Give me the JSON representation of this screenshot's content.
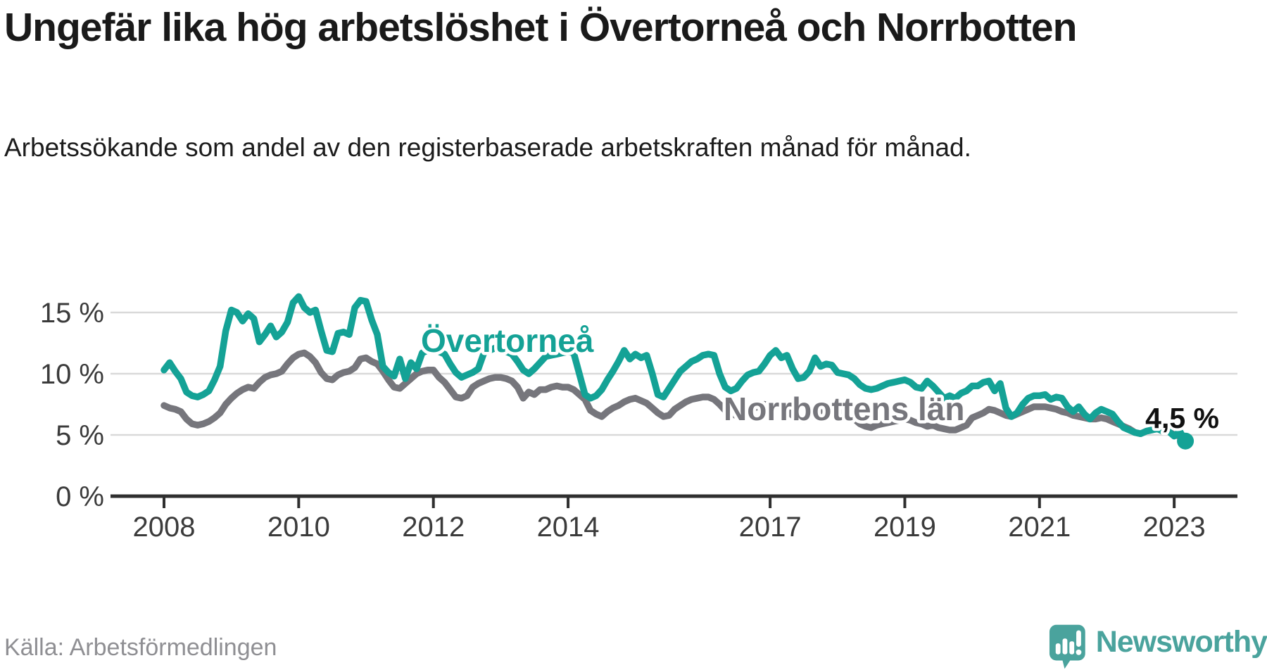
{
  "header": {
    "title": "Ungefär lika hög arbetslöshet i Övertorneå och Norrbotten",
    "subtitle": "Arbetssökande som andel av den registerbaserade arbetskraften månad för månad."
  },
  "chart_data": {
    "type": "line",
    "unit": "%",
    "x_start": "2008-01",
    "x_end": "2023-03",
    "frequency": "monthly",
    "grid": "horizontal",
    "ylim": [
      0,
      17
    ],
    "y_ticks": [
      {
        "value": 0,
        "label": "0 %"
      },
      {
        "value": 5,
        "label": "5 %"
      },
      {
        "value": 10,
        "label": "10 %"
      },
      {
        "value": 15,
        "label": "15 %"
      }
    ],
    "x_tick_years": [
      2008,
      2010,
      2012,
      2014,
      2017,
      2019,
      2021,
      2023
    ],
    "series": [
      {
        "name": "Övertorneå",
        "color": "#14a296",
        "values": [
          10.3,
          10.9,
          10.2,
          9.6,
          8.5,
          8.2,
          8.1,
          8.3,
          8.6,
          9.5,
          10.6,
          13.5,
          15.2,
          15.0,
          14.3,
          14.9,
          14.5,
          12.6,
          13.2,
          13.9,
          13.0,
          13.4,
          14.2,
          15.8,
          16.3,
          15.4,
          15.0,
          15.2,
          13.5,
          11.9,
          11.8,
          13.3,
          13.4,
          13.2,
          15.4,
          16.0,
          15.9,
          14.4,
          13.2,
          10.6,
          10.1,
          9.8,
          11.2,
          9.6,
          10.9,
          10.4,
          11.7,
          11.9,
          12.0,
          11.8,
          11.6,
          10.8,
          10.1,
          9.7,
          9.9,
          10.1,
          10.4,
          11.7,
          11.9,
          12.1,
          12.0,
          11.8,
          11.6,
          11.0,
          10.3,
          10.0,
          10.4,
          10.9,
          11.4,
          11.5,
          11.6,
          11.7,
          11.8,
          11.7,
          10.0,
          8.3,
          8.0,
          8.2,
          8.7,
          9.5,
          10.2,
          11.0,
          11.9,
          11.2,
          11.6,
          11.3,
          11.5,
          10.0,
          8.3,
          8.1,
          8.8,
          9.5,
          10.2,
          10.6,
          11.0,
          11.2,
          11.5,
          11.6,
          11.5,
          10.0,
          8.9,
          8.6,
          8.8,
          9.4,
          9.9,
          10.1,
          10.2,
          10.8,
          11.5,
          11.9,
          11.3,
          11.5,
          10.4,
          9.6,
          9.7,
          10.2,
          11.3,
          10.6,
          10.8,
          10.7,
          10.1,
          10.0,
          9.9,
          9.6,
          9.1,
          8.8,
          8.7,
          8.8,
          9.0,
          9.2,
          9.3,
          9.4,
          9.5,
          9.3,
          8.9,
          8.8,
          9.4,
          9.0,
          8.5,
          8.0,
          8.2,
          8.0,
          8.4,
          8.6,
          9.0,
          9.0,
          9.3,
          9.4,
          8.6,
          9.2,
          7.2,
          6.5,
          6.8,
          7.5,
          8.0,
          8.2,
          8.2,
          8.3,
          7.9,
          8.1,
          8.0,
          7.3,
          6.9,
          7.3,
          6.7,
          6.3,
          6.8,
          7.1,
          6.9,
          6.7,
          6.1,
          5.6,
          5.4,
          5.2,
          5.1,
          5.3,
          5.4,
          5.5,
          5.3,
          5.3,
          4.9,
          5.3,
          4.5
        ]
      },
      {
        "name": "Norrbottens län",
        "color": "#76767c",
        "values": [
          7.4,
          7.2,
          7.1,
          6.9,
          6.3,
          5.9,
          5.8,
          5.9,
          6.1,
          6.4,
          6.8,
          7.5,
          8.0,
          8.4,
          8.7,
          8.9,
          8.8,
          9.3,
          9.7,
          9.9,
          10.0,
          10.2,
          10.8,
          11.3,
          11.6,
          11.7,
          11.4,
          10.9,
          10.1,
          9.6,
          9.5,
          9.9,
          10.1,
          10.2,
          10.5,
          11.2,
          11.3,
          11.0,
          10.8,
          10.2,
          9.5,
          8.9,
          8.8,
          9.2,
          9.6,
          10.0,
          10.2,
          10.3,
          10.3,
          9.7,
          9.3,
          8.7,
          8.1,
          8.0,
          8.2,
          8.9,
          9.2,
          9.4,
          9.6,
          9.7,
          9.7,
          9.6,
          9.4,
          8.9,
          8.0,
          8.5,
          8.3,
          8.7,
          8.7,
          8.9,
          9.0,
          8.9,
          8.9,
          8.7,
          8.3,
          7.9,
          7.0,
          6.7,
          6.5,
          6.9,
          7.2,
          7.4,
          7.7,
          7.9,
          8.0,
          7.8,
          7.6,
          7.2,
          6.8,
          6.5,
          6.6,
          7.1,
          7.4,
          7.7,
          7.9,
          8.0,
          8.1,
          8.1,
          7.9,
          7.5,
          7.0,
          6.7,
          6.6,
          6.9,
          7.1,
          7.2,
          7.3,
          7.5,
          7.4,
          7.5,
          7.3,
          7.0,
          6.6,
          6.3,
          6.2,
          6.5,
          6.7,
          6.8,
          6.9,
          7.0,
          6.9,
          6.8,
          6.6,
          6.3,
          5.9,
          5.7,
          5.6,
          5.8,
          5.9,
          6.0,
          6.1,
          6.2,
          6.3,
          6.2,
          6.0,
          5.9,
          5.7,
          5.8,
          5.6,
          5.5,
          5.4,
          5.4,
          5.6,
          5.8,
          6.4,
          6.6,
          6.8,
          7.1,
          7.0,
          6.8,
          6.6,
          6.5,
          6.7,
          6.9,
          7.1,
          7.3,
          7.3,
          7.3,
          7.2,
          7.1,
          6.9,
          6.8,
          6.6,
          6.5,
          6.4,
          6.3,
          6.3,
          6.4,
          6.3,
          6.1,
          5.9,
          5.7,
          5.5,
          5.2,
          5.1,
          5.3,
          5.4,
          5.6,
          5.5,
          5.3,
          5.0,
          4.9,
          4.8
        ]
      }
    ],
    "end_annotation": {
      "series": "Övertorneå",
      "label": "4,5 %",
      "value": 4.5
    }
  },
  "footer": {
    "source": "Källa: Arbetsförmedlingen",
    "brand": "Newsworthy"
  },
  "colors": {
    "accent_teal": "#14a296",
    "series_gray": "#76767c",
    "gridline": "#d9d9d9",
    "axis": "#2f2f2f",
    "axis_label": "#3b3b3b",
    "end_label": "#111111",
    "logo_teal": "#4aa39d"
  }
}
